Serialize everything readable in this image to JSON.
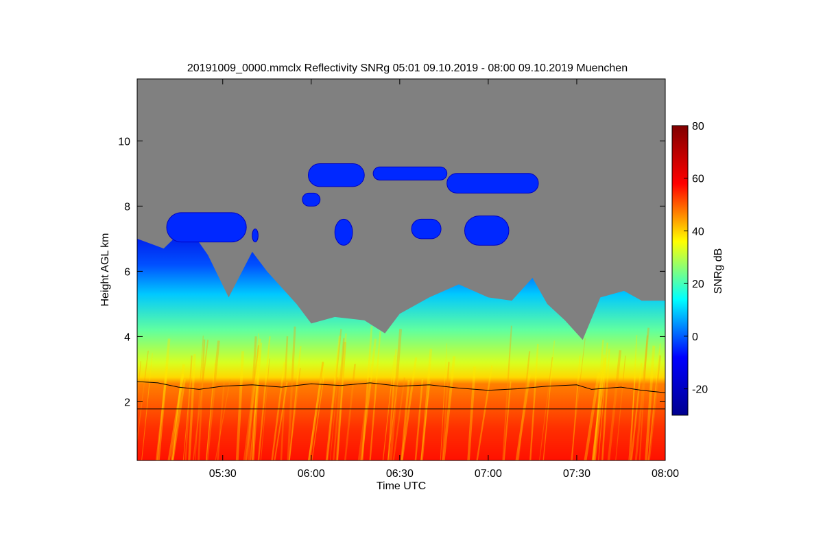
{
  "chart_data": {
    "type": "heatmap",
    "title": "20191009_0000.mmclx Reflectivity SNRg   05:01 09.10.2019 - 08:00 09.10.2019 Muenchen",
    "xlabel": "Time UTC",
    "ylabel": "Height AGL km",
    "x_range_minutes": [
      301,
      480
    ],
    "x_ticks": [
      {
        "label": "05:30",
        "value": 330
      },
      {
        "label": "06:00",
        "value": 360
      },
      {
        "label": "06:30",
        "value": 390
      },
      {
        "label": "07:00",
        "value": 420
      },
      {
        "label": "07:30",
        "value": 450
      },
      {
        "label": "08:00",
        "value": 480
      }
    ],
    "ylim": [
      0.2,
      11.9
    ],
    "y_ticks": [
      {
        "label": "2",
        "value": 2
      },
      {
        "label": "4",
        "value": 4
      },
      {
        "label": "6",
        "value": 6
      },
      {
        "label": "8",
        "value": 8
      },
      {
        "label": "10",
        "value": 10
      }
    ],
    "colorbar": {
      "label": "SNRg dB",
      "range": [
        -30,
        80
      ],
      "ticks": [
        {
          "label": "80",
          "value": 80
        },
        {
          "label": "60",
          "value": 60
        },
        {
          "label": "40",
          "value": 40
        },
        {
          "label": "20",
          "value": 20
        },
        {
          "label": "0",
          "value": 0
        },
        {
          "label": "-20",
          "value": -20
        }
      ],
      "colors": [
        "#00008f",
        "#0000ff",
        "#00ffff",
        "#ffff00",
        "#ff0000",
        "#800000"
      ]
    },
    "background_color": "#808080",
    "melting_layer_km": [
      [
        301,
        2.62
      ],
      [
        308,
        2.58
      ],
      [
        315,
        2.45
      ],
      [
        322,
        2.38
      ],
      [
        330,
        2.48
      ],
      [
        340,
        2.52
      ],
      [
        350,
        2.45
      ],
      [
        360,
        2.55
      ],
      [
        370,
        2.5
      ],
      [
        380,
        2.58
      ],
      [
        390,
        2.48
      ],
      [
        400,
        2.52
      ],
      [
        410,
        2.42
      ],
      [
        420,
        2.35
      ],
      [
        430,
        2.4
      ],
      [
        440,
        2.48
      ],
      [
        450,
        2.52
      ],
      [
        455,
        2.38
      ],
      [
        465,
        2.45
      ],
      [
        472,
        2.35
      ],
      [
        480,
        2.28
      ]
    ],
    "reference_height_km": 1.78,
    "cloud_top_km": [
      [
        301,
        7.0
      ],
      [
        310,
        6.7
      ],
      [
        318,
        7.4
      ],
      [
        325,
        6.5
      ],
      [
        332,
        5.2
      ],
      [
        340,
        6.6
      ],
      [
        345,
        6.0
      ],
      [
        350,
        5.5
      ],
      [
        355,
        5.0
      ],
      [
        360,
        4.4
      ],
      [
        368,
        4.6
      ],
      [
        378,
        4.5
      ],
      [
        385,
        4.1
      ],
      [
        390,
        4.7
      ],
      [
        400,
        5.2
      ],
      [
        410,
        5.6
      ],
      [
        420,
        5.2
      ],
      [
        428,
        5.1
      ],
      [
        435,
        5.8
      ],
      [
        440,
        5.0
      ],
      [
        446,
        4.5
      ],
      [
        452,
        3.9
      ],
      [
        458,
        5.2
      ],
      [
        466,
        5.4
      ],
      [
        472,
        5.1
      ],
      [
        480,
        5.1
      ]
    ],
    "high_cloud_layers_km": [
      {
        "x": [
          311,
          338
        ],
        "bottom": 6.9,
        "top": 7.8
      },
      {
        "x": [
          340,
          342
        ],
        "bottom": 6.9,
        "top": 7.3
      },
      {
        "x": [
          359,
          378
        ],
        "bottom": 8.6,
        "top": 9.3
      },
      {
        "x": [
          381,
          406
        ],
        "bottom": 8.8,
        "top": 9.2
      },
      {
        "x": [
          406,
          437
        ],
        "bottom": 8.4,
        "top": 9.0
      },
      {
        "x": [
          357,
          363
        ],
        "bottom": 8.0,
        "top": 8.4
      },
      {
        "x": [
          368,
          374
        ],
        "bottom": 6.8,
        "top": 7.6
      },
      {
        "x": [
          394,
          404
        ],
        "bottom": 7.0,
        "top": 7.6
      },
      {
        "x": [
          412,
          427
        ],
        "bottom": 6.8,
        "top": 7.7
      }
    ]
  }
}
